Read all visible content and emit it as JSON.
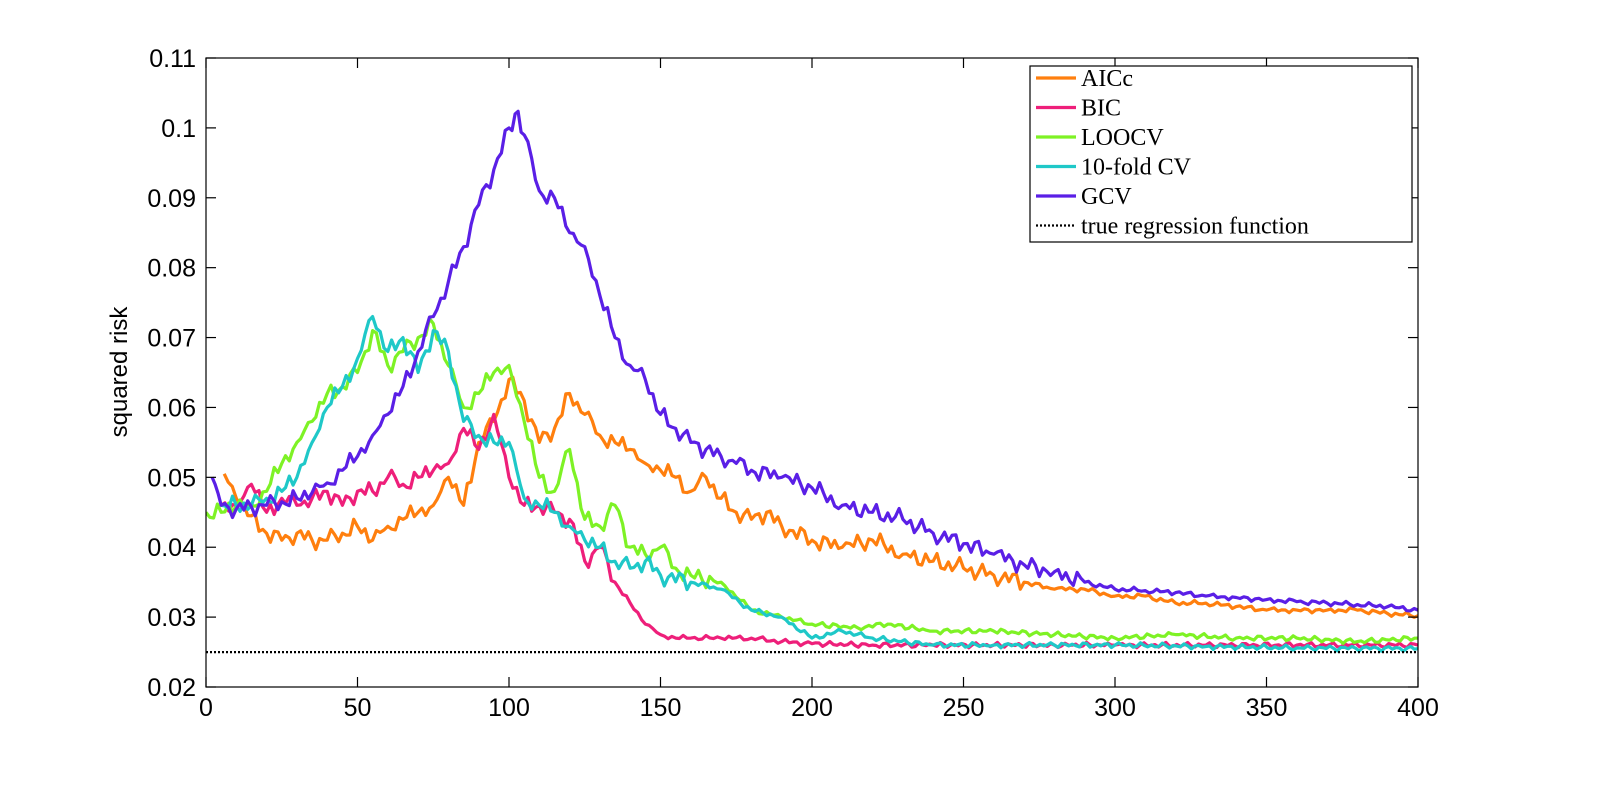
{
  "chart_data": {
    "type": "line",
    "title": "",
    "xlabel": "",
    "ylabel": "squared risk",
    "xlim": [
      0,
      400
    ],
    "ylim": [
      0.02,
      0.11
    ],
    "xticks": [
      0,
      50,
      100,
      150,
      200,
      250,
      300,
      350,
      400
    ],
    "xtick_labels": [
      "0",
      "50",
      "100",
      "150",
      "200",
      "250",
      "300",
      "350",
      "400"
    ],
    "yticks": [
      0.02,
      0.03,
      0.04,
      0.05,
      0.06,
      0.07,
      0.08,
      0.09,
      0.1,
      0.11
    ],
    "ytick_labels": [
      "0.02",
      "0.03",
      "0.04",
      "0.05",
      "0.06",
      "0.07",
      "0.08",
      "0.09",
      "0.1",
      "0.11"
    ],
    "grid": false,
    "legend_position": "top-right",
    "series": [
      {
        "name": "AICc",
        "color": "#ff7f0e",
        "style": "solid",
        "x": [
          6,
          10,
          15,
          20,
          25,
          30,
          35,
          40,
          45,
          50,
          55,
          60,
          65,
          70,
          75,
          80,
          85,
          90,
          95,
          100,
          105,
          110,
          115,
          120,
          125,
          130,
          135,
          140,
          145,
          150,
          155,
          160,
          165,
          170,
          175,
          180,
          185,
          190,
          200,
          210,
          220,
          230,
          240,
          250,
          260,
          270,
          280,
          290,
          300,
          310,
          320,
          330,
          340,
          350,
          360,
          370,
          380,
          390,
          400
        ],
        "y": [
          0.0505,
          0.047,
          0.0445,
          0.042,
          0.041,
          0.042,
          0.041,
          0.041,
          0.042,
          0.043,
          0.041,
          0.043,
          0.044,
          0.045,
          0.046,
          0.05,
          0.046,
          0.055,
          0.058,
          0.064,
          0.061,
          0.055,
          0.057,
          0.062,
          0.059,
          0.056,
          0.055,
          0.054,
          0.052,
          0.051,
          0.05,
          0.048,
          0.05,
          0.047,
          0.045,
          0.044,
          0.045,
          0.043,
          0.041,
          0.04,
          0.041,
          0.039,
          0.038,
          0.037,
          0.036,
          0.035,
          0.034,
          0.034,
          0.033,
          0.033,
          0.032,
          0.032,
          0.0315,
          0.031,
          0.031,
          0.031,
          0.031,
          0.0305,
          0.0302
        ]
      },
      {
        "name": "BIC",
        "color": "#ee1f7a",
        "style": "solid",
        "x": [
          5,
          10,
          15,
          20,
          25,
          30,
          35,
          40,
          45,
          50,
          55,
          60,
          65,
          70,
          75,
          80,
          85,
          90,
          95,
          100,
          105,
          110,
          115,
          120,
          125,
          130,
          135,
          140,
          145,
          150,
          155,
          160,
          170,
          180,
          190,
          200,
          220,
          240,
          260,
          280,
          300,
          330,
          360,
          400
        ],
        "y": [
          0.046,
          0.046,
          0.049,
          0.045,
          0.047,
          0.046,
          0.047,
          0.048,
          0.046,
          0.048,
          0.048,
          0.05,
          0.049,
          0.05,
          0.051,
          0.052,
          0.057,
          0.054,
          0.059,
          0.05,
          0.046,
          0.046,
          0.045,
          0.044,
          0.038,
          0.04,
          0.035,
          0.032,
          0.029,
          0.0275,
          0.027,
          0.027,
          0.027,
          0.027,
          0.0265,
          0.0262,
          0.026,
          0.026,
          0.026,
          0.026,
          0.026,
          0.026,
          0.026,
          0.026
        ]
      },
      {
        "name": "LOOCV",
        "color": "#7ef225",
        "style": "solid",
        "x": [
          0,
          5,
          10,
          15,
          20,
          25,
          30,
          35,
          40,
          45,
          50,
          55,
          60,
          65,
          70,
          75,
          80,
          85,
          90,
          95,
          100,
          105,
          110,
          115,
          120,
          125,
          130,
          135,
          140,
          145,
          150,
          155,
          160,
          170,
          180,
          190,
          200,
          215,
          225,
          240,
          260,
          280,
          300,
          320,
          340,
          360,
          380,
          400
        ],
        "y": [
          0.045,
          0.045,
          0.046,
          0.046,
          0.048,
          0.052,
          0.055,
          0.058,
          0.062,
          0.063,
          0.065,
          0.071,
          0.066,
          0.068,
          0.07,
          0.072,
          0.066,
          0.06,
          0.062,
          0.065,
          0.066,
          0.058,
          0.05,
          0.048,
          0.054,
          0.044,
          0.043,
          0.046,
          0.04,
          0.039,
          0.04,
          0.037,
          0.036,
          0.035,
          0.031,
          0.03,
          0.029,
          0.0285,
          0.029,
          0.028,
          0.028,
          0.0275,
          0.027,
          0.0275,
          0.027,
          0.027,
          0.0265,
          0.027
        ]
      },
      {
        "name": "10-fold CV",
        "color": "#1fc8c8",
        "style": "solid",
        "x": [
          5,
          10,
          15,
          20,
          25,
          30,
          35,
          40,
          45,
          50,
          55,
          60,
          65,
          70,
          75,
          80,
          85,
          90,
          95,
          100,
          105,
          110,
          115,
          120,
          125,
          130,
          135,
          140,
          145,
          150,
          160,
          170,
          180,
          190,
          200,
          210,
          220,
          240,
          260,
          280,
          300,
          330,
          360,
          400
        ],
        "y": [
          0.046,
          0.046,
          0.046,
          0.047,
          0.048,
          0.05,
          0.055,
          0.06,
          0.063,
          0.067,
          0.073,
          0.068,
          0.07,
          0.065,
          0.071,
          0.068,
          0.058,
          0.056,
          0.055,
          0.055,
          0.047,
          0.046,
          0.045,
          0.043,
          0.041,
          0.04,
          0.038,
          0.037,
          0.038,
          0.036,
          0.035,
          0.034,
          0.031,
          0.03,
          0.027,
          0.028,
          0.027,
          0.026,
          0.026,
          0.026,
          0.026,
          0.0258,
          0.0256,
          0.0255
        ]
      },
      {
        "name": "GCV",
        "color": "#5a1fe6",
        "style": "solid",
        "x": [
          2,
          5,
          10,
          15,
          20,
          25,
          30,
          35,
          40,
          45,
          50,
          55,
          60,
          65,
          70,
          75,
          80,
          85,
          90,
          95,
          100,
          102,
          105,
          110,
          115,
          120,
          125,
          130,
          135,
          140,
          145,
          150,
          155,
          160,
          165,
          170,
          175,
          180,
          190,
          200,
          210,
          220,
          230,
          240,
          250,
          260,
          270,
          280,
          290,
          300,
          310,
          320,
          330,
          340,
          350,
          360,
          370,
          380,
          390,
          400
        ],
        "y": [
          0.05,
          0.046,
          0.0455,
          0.0458,
          0.046,
          0.0465,
          0.047,
          0.0478,
          0.0492,
          0.051,
          0.053,
          0.056,
          0.059,
          0.063,
          0.068,
          0.073,
          0.078,
          0.083,
          0.089,
          0.094,
          0.1,
          0.102,
          0.099,
          0.091,
          0.09,
          0.085,
          0.083,
          0.076,
          0.07,
          0.066,
          0.064,
          0.059,
          0.057,
          0.055,
          0.054,
          0.053,
          0.052,
          0.051,
          0.05,
          0.0485,
          0.046,
          0.045,
          0.044,
          0.042,
          0.0405,
          0.039,
          0.0375,
          0.0365,
          0.035,
          0.034,
          0.0338,
          0.0335,
          0.033,
          0.0328,
          0.0325,
          0.0322,
          0.032,
          0.0318,
          0.0315,
          0.031
        ]
      },
      {
        "name": "true regression function",
        "color": "#000000",
        "style": "dotted",
        "x": [
          0,
          400
        ],
        "y": [
          0.025,
          0.025
        ]
      }
    ]
  }
}
